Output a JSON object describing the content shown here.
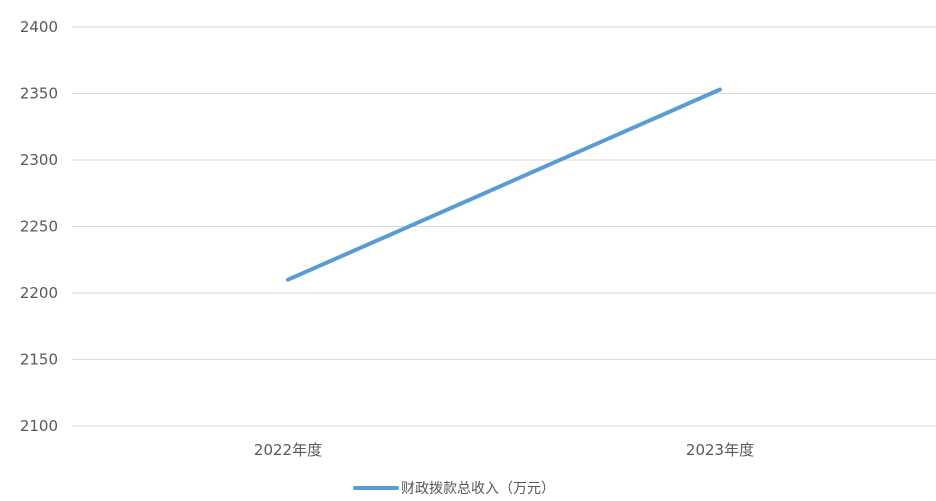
{
  "chart_data": {
    "type": "line",
    "categories": [
      "2022年度",
      "2023年度"
    ],
    "series": [
      {
        "name": "财政拨款总收入（万元）",
        "values": [
          2210,
          2353
        ],
        "color": "#5b9bd5"
      }
    ],
    "yticks": [
      "2100",
      "2150",
      "2200",
      "2250",
      "2300",
      "2350",
      "2400"
    ],
    "ylim": [
      2100,
      2400
    ],
    "grid": true,
    "legend_position": "bottom",
    "title": "",
    "xlabel": "",
    "ylabel": ""
  }
}
